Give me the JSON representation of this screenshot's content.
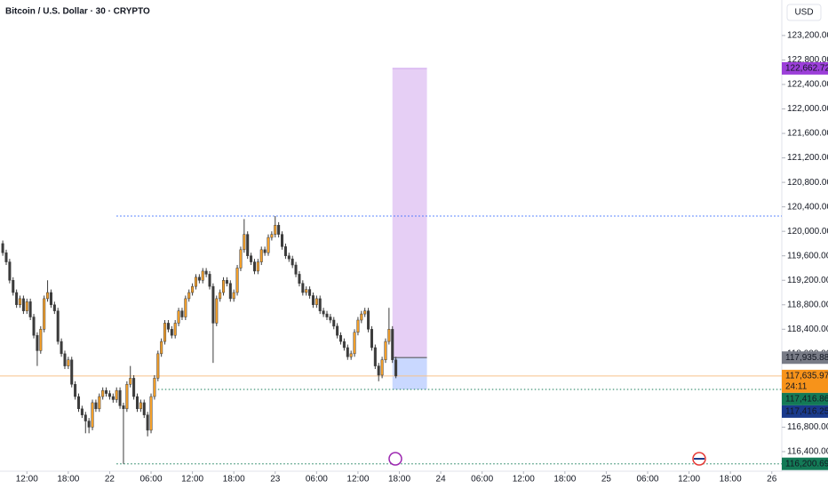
{
  "chart_data": {
    "type": "candlestick",
    "title": "Bitcoin / U.S. Dollar · 30 · CRYPTO",
    "currency": "USD",
    "up_color": "#f5a02a",
    "down_color": "#3b3b3b",
    "ohlc": [
      [
        119800,
        119850,
        119600,
        119650
      ],
      [
        119650,
        119700,
        119450,
        119500
      ],
      [
        119500,
        119550,
        119150,
        119200
      ],
      [
        119200,
        119250,
        118950,
        119000
      ],
      [
        119000,
        119050,
        118750,
        118800
      ],
      [
        118800,
        118950,
        118750,
        118900
      ],
      [
        118900,
        118950,
        118650,
        118700
      ],
      [
        118700,
        118900,
        118650,
        118850
      ],
      [
        118850,
        118900,
        118550,
        118600
      ],
      [
        118600,
        118650,
        118250,
        118300
      ],
      [
        118300,
        118350,
        117800,
        118050
      ],
      [
        118050,
        118450,
        118000,
        118400
      ],
      [
        118400,
        118950,
        118350,
        118900
      ],
      [
        118900,
        119200,
        118850,
        119000
      ],
      [
        119000,
        119050,
        118750,
        118800
      ],
      [
        118800,
        118850,
        118650,
        118700
      ],
      [
        118700,
        118750,
        118150,
        118200
      ],
      [
        118200,
        118250,
        117950,
        118000
      ],
      [
        118000,
        118050,
        117750,
        117800
      ],
      [
        117800,
        117950,
        117750,
        117900
      ],
      [
        117900,
        117950,
        117450,
        117500
      ],
      [
        117500,
        117550,
        117250,
        117300
      ],
      [
        117300,
        117350,
        117050,
        117100
      ],
      [
        117100,
        117150,
        116950,
        117000
      ],
      [
        117000,
        117050,
        116700,
        116900
      ],
      [
        116900,
        116950,
        116700,
        116800
      ],
      [
        116800,
        117250,
        116750,
        117200
      ],
      [
        117200,
        117250,
        117050,
        117100
      ],
      [
        117100,
        117350,
        117050,
        117300
      ],
      [
        117300,
        117450,
        117250,
        117400
      ],
      [
        117400,
        117450,
        117300,
        117350
      ],
      [
        117350,
        117400,
        117250,
        117300
      ],
      [
        117300,
        117350,
        117200,
        117250
      ],
      [
        117250,
        117450,
        117200,
        117400
      ],
      [
        117400,
        117450,
        117100,
        117150
      ],
      [
        117150,
        117200,
        116200,
        117100
      ],
      [
        117100,
        117550,
        117050,
        117500
      ],
      [
        117500,
        117800,
        117450,
        117600
      ],
      [
        117600,
        117650,
        117250,
        117300
      ],
      [
        117300,
        117350,
        117050,
        117100
      ],
      [
        117100,
        117250,
        117050,
        117200
      ],
      [
        117200,
        117250,
        116950,
        117000
      ],
      [
        117000,
        117050,
        116650,
        116750
      ],
      [
        116750,
        117350,
        116700,
        117300
      ],
      [
        117300,
        117650,
        117250,
        117600
      ],
      [
        117600,
        118050,
        117550,
        118000
      ],
      [
        118000,
        118250,
        117950,
        118200
      ],
      [
        118200,
        118550,
        118150,
        118500
      ],
      [
        118500,
        118550,
        118350,
        118400
      ],
      [
        118400,
        118450,
        118250,
        118300
      ],
      [
        118300,
        118550,
        118250,
        118500
      ],
      [
        118500,
        118750,
        118450,
        118700
      ],
      [
        118700,
        118750,
        118550,
        118600
      ],
      [
        118600,
        118950,
        118550,
        118900
      ],
      [
        118900,
        119050,
        118850,
        119000
      ],
      [
        119000,
        119150,
        118950,
        119100
      ],
      [
        119100,
        119300,
        119050,
        119250
      ],
      [
        119250,
        119300,
        119150,
        119200
      ],
      [
        119200,
        119400,
        119150,
        119350
      ],
      [
        119350,
        119400,
        119250,
        119300
      ],
      [
        119300,
        119350,
        119050,
        119100
      ],
      [
        119100,
        119150,
        117850,
        118500
      ],
      [
        118500,
        118950,
        118450,
        118900
      ],
      [
        118900,
        119050,
        118850,
        119000
      ],
      [
        119000,
        119250,
        118950,
        119200
      ],
      [
        119200,
        119250,
        119100,
        119150
      ],
      [
        119150,
        119200,
        118850,
        118900
      ],
      [
        118900,
        119050,
        118850,
        119000
      ],
      [
        119000,
        119450,
        118950,
        119400
      ],
      [
        119400,
        119750,
        119350,
        119700
      ],
      [
        119700,
        120200,
        119650,
        119950
      ],
      [
        119950,
        120000,
        119550,
        119600
      ],
      [
        119600,
        119650,
        119450,
        119500
      ],
      [
        119500,
        119550,
        119300,
        119350
      ],
      [
        119350,
        119550,
        119300,
        119500
      ],
      [
        119500,
        119750,
        119450,
        119700
      ],
      [
        119700,
        119750,
        119600,
        119650
      ],
      [
        119650,
        119950,
        119600,
        119900
      ],
      [
        119900,
        120000,
        119850,
        119950
      ],
      [
        119950,
        120250,
        119900,
        120100
      ],
      [
        120100,
        120150,
        119900,
        119950
      ],
      [
        119950,
        120000,
        119700,
        119750
      ],
      [
        119750,
        119800,
        119550,
        119600
      ],
      [
        119600,
        119650,
        119500,
        119550
      ],
      [
        119550,
        119600,
        119400,
        119450
      ],
      [
        119450,
        119500,
        119250,
        119300
      ],
      [
        119300,
        119350,
        119100,
        119150
      ],
      [
        119150,
        119200,
        118950,
        119000
      ],
      [
        119000,
        119100,
        118950,
        119050
      ],
      [
        119050,
        119100,
        118900,
        118950
      ],
      [
        118950,
        119000,
        118750,
        118800
      ],
      [
        118800,
        118950,
        118750,
        118900
      ],
      [
        118900,
        118950,
        118650,
        118700
      ],
      [
        118700,
        118750,
        118600,
        118650
      ],
      [
        118650,
        118700,
        118550,
        118600
      ],
      [
        118600,
        118650,
        118500,
        118550
      ],
      [
        118550,
        118600,
        118400,
        118450
      ],
      [
        118450,
        118500,
        118250,
        118300
      ],
      [
        118300,
        118350,
        118150,
        118200
      ],
      [
        118200,
        118250,
        118050,
        118100
      ],
      [
        118100,
        118150,
        117900,
        117950
      ],
      [
        117950,
        118050,
        117900,
        118000
      ],
      [
        118000,
        118400,
        117950,
        118350
      ],
      [
        118350,
        118600,
        118300,
        118550
      ],
      [
        118550,
        118700,
        118500,
        118650
      ],
      [
        118650,
        118750,
        118600,
        118700
      ],
      [
        118700,
        118750,
        118350,
        118400
      ],
      [
        118400,
        118450,
        118050,
        118100
      ],
      [
        118100,
        118150,
        117750,
        117800
      ],
      [
        117800,
        117850,
        117550,
        117650
      ],
      [
        117650,
        117950,
        117600,
        117900
      ],
      [
        117900,
        118250,
        117850,
        118200
      ],
      [
        118200,
        118750,
        118150,
        118400
      ],
      [
        118400,
        118450,
        117850,
        117900
      ],
      [
        117900,
        117950,
        117600,
        117635.97
      ]
    ],
    "xlim": [
      -0.8,
      225.9
    ],
    "xticks": [
      {
        "value": 7,
        "label": "12:00"
      },
      {
        "value": 19,
        "label": "18:00"
      },
      {
        "value": 31,
        "label": "22"
      },
      {
        "value": 43,
        "label": "06:00"
      },
      {
        "value": 55,
        "label": "12:00"
      },
      {
        "value": 67,
        "label": "18:00"
      },
      {
        "value": 79,
        "label": "23"
      },
      {
        "value": 91,
        "label": "06:00"
      },
      {
        "value": 103,
        "label": "12:00"
      },
      {
        "value": 115,
        "label": "18:00"
      },
      {
        "value": 127,
        "label": "24"
      },
      {
        "value": 139,
        "label": "06:00"
      },
      {
        "value": 151,
        "label": "12:00"
      },
      {
        "value": 163,
        "label": "18:00"
      },
      {
        "value": 175,
        "label": "25"
      },
      {
        "value": 187,
        "label": "06:00"
      },
      {
        "value": 199,
        "label": "12:00"
      },
      {
        "value": 211,
        "label": "18:00"
      },
      {
        "value": 223,
        "label": "26"
      }
    ],
    "ylim": [
      116080,
      123780
    ],
    "yticks": [
      {
        "value": 116400,
        "label": "116,400.00"
      },
      {
        "value": 116800,
        "label": "116,800.00"
      },
      {
        "value": 117200,
        "label": "117,200.00"
      },
      {
        "value": 117600,
        "label": "117,600.00"
      },
      {
        "value": 118000,
        "label": "118,000.00"
      },
      {
        "value": 118400,
        "label": "118,400.00"
      },
      {
        "value": 118800,
        "label": "118,800.00"
      },
      {
        "value": 119200,
        "label": "119,200.00"
      },
      {
        "value": 119600,
        "label": "119,600.00"
      },
      {
        "value": 120000,
        "label": "120,000.00"
      },
      {
        "value": 120400,
        "label": "120,400.00"
      },
      {
        "value": 120800,
        "label": "120,800.00"
      },
      {
        "value": 121200,
        "label": "121,200.00"
      },
      {
        "value": 121600,
        "label": "121,600.00"
      },
      {
        "value": 122000,
        "label": "122,000.00"
      },
      {
        "value": 122400,
        "label": "122,400.00"
      },
      {
        "value": 122800,
        "label": "122,800.00"
      },
      {
        "value": 123200,
        "label": "123,200.00"
      }
    ],
    "price_labels": [
      {
        "value": 122662.72,
        "label": "122,662.72",
        "color": "#9c3fd9"
      },
      {
        "value": 117935.88,
        "label": "117,935.88",
        "color": "#787b86"
      },
      {
        "value": 117635.97,
        "label": "117,635.97",
        "color": "#f7931a",
        "countdown": "24:11"
      },
      {
        "value": 117416.86,
        "label": "117,416.86",
        "color": "#137a56"
      },
      {
        "value": 117416.25,
        "label": "117,416.25",
        "color": "#1a3a8c"
      },
      {
        "value": 116200.69,
        "label": "116,200.69",
        "color": "#137a56"
      }
    ],
    "levels": [
      {
        "value": 120250,
        "color": "#2962ff",
        "from": 33
      },
      {
        "value": 117416.86,
        "color": "#137a56",
        "from": 45
      },
      {
        "value": 116200.69,
        "color": "#137a56",
        "from": 33
      },
      {
        "value": 117635.97,
        "color": "#f7c28a",
        "from": -0.8
      }
    ],
    "position": {
      "x": [
        113,
        123
      ],
      "target": 122662.72,
      "entry": 117935.88,
      "stop": 117416.86
    }
  }
}
